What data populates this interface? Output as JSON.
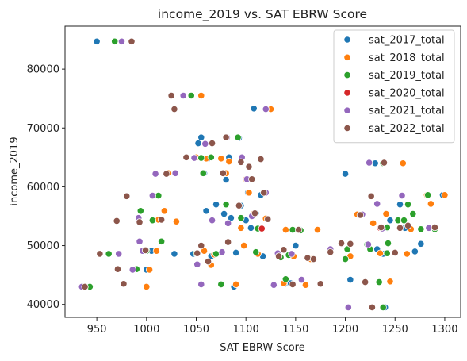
{
  "chart_data": {
    "type": "scatter",
    "title": "income_2019 vs. SAT EBRW Score",
    "xlabel": "SAT EBRW Score",
    "ylabel": "income_2019",
    "xlim": [
      918,
      1316
    ],
    "ylim": [
      37800,
      87300
    ],
    "xticks": [
      950,
      1000,
      1050,
      1100,
      1150,
      1200,
      1250,
      1300
    ],
    "yticks": [
      40000,
      50000,
      60000,
      70000,
      80000
    ],
    "grid": false,
    "legend_position": "top-right",
    "series": [
      {
        "name": "sat_2017_total",
        "color": "#1f77b4",
        "points": [
          [
            950,
            84700
          ],
          [
            1000,
            45900
          ],
          [
            1005,
            49100
          ],
          [
            1028,
            48600
          ],
          [
            1047,
            48600
          ],
          [
            1052,
            67400
          ],
          [
            1055,
            68400
          ],
          [
            1058,
            62300
          ],
          [
            1060,
            55900
          ],
          [
            1062,
            64800
          ],
          [
            1065,
            65000
          ],
          [
            1065,
            48200
          ],
          [
            1070,
            57000
          ],
          [
            1075,
            64800
          ],
          [
            1078,
            55400
          ],
          [
            1080,
            61200
          ],
          [
            1083,
            65000
          ],
          [
            1085,
            54700
          ],
          [
            1088,
            43000
          ],
          [
            1090,
            48800
          ],
          [
            1093,
            68300
          ],
          [
            1095,
            56800
          ],
          [
            1100,
            54300
          ],
          [
            1102,
            59000
          ],
          [
            1105,
            53000
          ],
          [
            1108,
            73300
          ],
          [
            1110,
            55500
          ],
          [
            1115,
            58600
          ],
          [
            1117,
            48200
          ],
          [
            1139,
            43500
          ],
          [
            1145,
            43600
          ],
          [
            1150,
            50000
          ],
          [
            1155,
            52700
          ],
          [
            1200,
            62200
          ],
          [
            1205,
            44200
          ],
          [
            1230,
            64000
          ],
          [
            1232,
            49400
          ],
          [
            1238,
            48600
          ],
          [
            1240,
            39500
          ],
          [
            1242,
            53000
          ],
          [
            1245,
            54300
          ],
          [
            1255,
            57000
          ],
          [
            1260,
            53000
          ],
          [
            1270,
            49000
          ],
          [
            1276,
            50300
          ],
          [
            1298,
            58600
          ]
        ]
      },
      {
        "name": "sat_2018_total",
        "color": "#ff7f0e",
        "points": [
          [
            1000,
            43000
          ],
          [
            1003,
            45900
          ],
          [
            1010,
            49100
          ],
          [
            1012,
            54400
          ],
          [
            1018,
            55900
          ],
          [
            1022,
            62300
          ],
          [
            1030,
            54100
          ],
          [
            1050,
            65000
          ],
          [
            1055,
            75500
          ],
          [
            1058,
            49100
          ],
          [
            1060,
            64800
          ],
          [
            1065,
            46700
          ],
          [
            1068,
            48500
          ],
          [
            1075,
            64800
          ],
          [
            1080,
            62300
          ],
          [
            1083,
            64300
          ],
          [
            1090,
            43400
          ],
          [
            1095,
            53000
          ],
          [
            1098,
            50000
          ],
          [
            1100,
            61300
          ],
          [
            1103,
            59000
          ],
          [
            1105,
            61300
          ],
          [
            1108,
            55500
          ],
          [
            1112,
            48600
          ],
          [
            1120,
            54600
          ],
          [
            1125,
            73200
          ],
          [
            1138,
            43600
          ],
          [
            1140,
            52700
          ],
          [
            1148,
            48200
          ],
          [
            1160,
            43300
          ],
          [
            1165,
            47700
          ],
          [
            1172,
            52700
          ],
          [
            1205,
            48200
          ],
          [
            1212,
            55300
          ],
          [
            1228,
            53800
          ],
          [
            1235,
            48700
          ],
          [
            1241,
            55400
          ],
          [
            1245,
            43900
          ],
          [
            1258,
            64000
          ],
          [
            1262,
            48600
          ],
          [
            1266,
            52800
          ],
          [
            1282,
            58600
          ],
          [
            1286,
            57100
          ],
          [
            1300,
            58600
          ]
        ]
      },
      {
        "name": "sat_2019_total",
        "color": "#2ca02c",
        "points": [
          [
            943,
            43000
          ],
          [
            962,
            48600
          ],
          [
            968,
            84700
          ],
          [
            990,
            46000
          ],
          [
            994,
            55900
          ],
          [
            1000,
            49100
          ],
          [
            1006,
            54300
          ],
          [
            1012,
            58500
          ],
          [
            1015,
            50700
          ],
          [
            1045,
            75500
          ],
          [
            1050,
            48700
          ],
          [
            1055,
            64900
          ],
          [
            1057,
            62300
          ],
          [
            1065,
            65000
          ],
          [
            1070,
            48600
          ],
          [
            1075,
            43400
          ],
          [
            1080,
            57000
          ],
          [
            1092,
            68400
          ],
          [
            1095,
            54700
          ],
          [
            1110,
            48900
          ],
          [
            1112,
            52900
          ],
          [
            1135,
            48000
          ],
          [
            1140,
            44300
          ],
          [
            1143,
            48400
          ],
          [
            1147,
            52700
          ],
          [
            1155,
            52600
          ],
          [
            1200,
            47700
          ],
          [
            1202,
            49400
          ],
          [
            1222,
            50200
          ],
          [
            1225,
            49400
          ],
          [
            1234,
            43800
          ],
          [
            1238,
            64000
          ],
          [
            1238,
            39500
          ],
          [
            1242,
            53100
          ],
          [
            1242,
            48700
          ],
          [
            1243,
            50400
          ],
          [
            1253,
            54300
          ],
          [
            1259,
            54300
          ],
          [
            1263,
            57000
          ],
          [
            1268,
            55400
          ],
          [
            1276,
            52800
          ],
          [
            1283,
            58600
          ],
          [
            1290,
            52800
          ]
        ]
      },
      {
        "name": "sat_2020_total",
        "color": "#d62728",
        "points": [
          [
            1116,
            52900
          ],
          [
            1235,
            53000
          ]
        ]
      },
      {
        "name": "sat_2021_total",
        "color": "#9467bd",
        "points": [
          [
            935,
            43000
          ],
          [
            972,
            48600
          ],
          [
            975,
            84700
          ],
          [
            986,
            45900
          ],
          [
            992,
            54700
          ],
          [
            993,
            50700
          ],
          [
            996,
            49100
          ],
          [
            1006,
            58500
          ],
          [
            1009,
            62200
          ],
          [
            1029,
            62300
          ],
          [
            1037,
            75500
          ],
          [
            1048,
            64900
          ],
          [
            1051,
            46800
          ],
          [
            1055,
            43400
          ],
          [
            1059,
            67300
          ],
          [
            1066,
            54300
          ],
          [
            1076,
            48900
          ],
          [
            1081,
            68400
          ],
          [
            1082,
            53800
          ],
          [
            1096,
            65000
          ],
          [
            1101,
            61300
          ],
          [
            1106,
            55000
          ],
          [
            1120,
            73200
          ],
          [
            1120,
            59000
          ],
          [
            1128,
            43300
          ],
          [
            1132,
            48700
          ],
          [
            1146,
            48600
          ],
          [
            1156,
            44200
          ],
          [
            1185,
            49400
          ],
          [
            1196,
            50300
          ],
          [
            1203,
            39500
          ],
          [
            1217,
            55300
          ],
          [
            1223,
            50200
          ],
          [
            1224,
            64100
          ],
          [
            1232,
            57100
          ],
          [
            1237,
            52900
          ],
          [
            1257,
            58500
          ],
          [
            1284,
            53000
          ]
        ]
      },
      {
        "name": "sat_2022_total",
        "color": "#8c564b",
        "points": [
          [
            938,
            43000
          ],
          [
            953,
            48600
          ],
          [
            970,
            54200
          ],
          [
            971,
            46000
          ],
          [
            977,
            43500
          ],
          [
            980,
            58400
          ],
          [
            985,
            84700
          ],
          [
            993,
            54000
          ],
          [
            999,
            49200
          ],
          [
            1015,
            54400
          ],
          [
            1020,
            62200
          ],
          [
            1025,
            75500
          ],
          [
            1028,
            73200
          ],
          [
            1040,
            65000
          ],
          [
            1051,
            48700
          ],
          [
            1055,
            50000
          ],
          [
            1062,
            47300
          ],
          [
            1066,
            67400
          ],
          [
            1077,
            62300
          ],
          [
            1080,
            68400
          ],
          [
            1082,
            50600
          ],
          [
            1093,
            56800
          ],
          [
            1095,
            64200
          ],
          [
            1103,
            63400
          ],
          [
            1106,
            61300
          ],
          [
            1109,
            55500
          ],
          [
            1115,
            64700
          ],
          [
            1118,
            59000
          ],
          [
            1122,
            54500
          ],
          [
            1133,
            48200
          ],
          [
            1138,
            49300
          ],
          [
            1147,
            43400
          ],
          [
            1153,
            52700
          ],
          [
            1162,
            47900
          ],
          [
            1168,
            47700
          ],
          [
            1175,
            43500
          ],
          [
            1185,
            48900
          ],
          [
            1196,
            50400
          ],
          [
            1205,
            50300
          ],
          [
            1215,
            55200
          ],
          [
            1220,
            43800
          ],
          [
            1226,
            58400
          ],
          [
            1227,
            39500
          ],
          [
            1236,
            53100
          ],
          [
            1239,
            64100
          ],
          [
            1250,
            48800
          ],
          [
            1255,
            53000
          ],
          [
            1263,
            53400
          ],
          [
            1290,
            53100
          ]
        ]
      }
    ]
  }
}
